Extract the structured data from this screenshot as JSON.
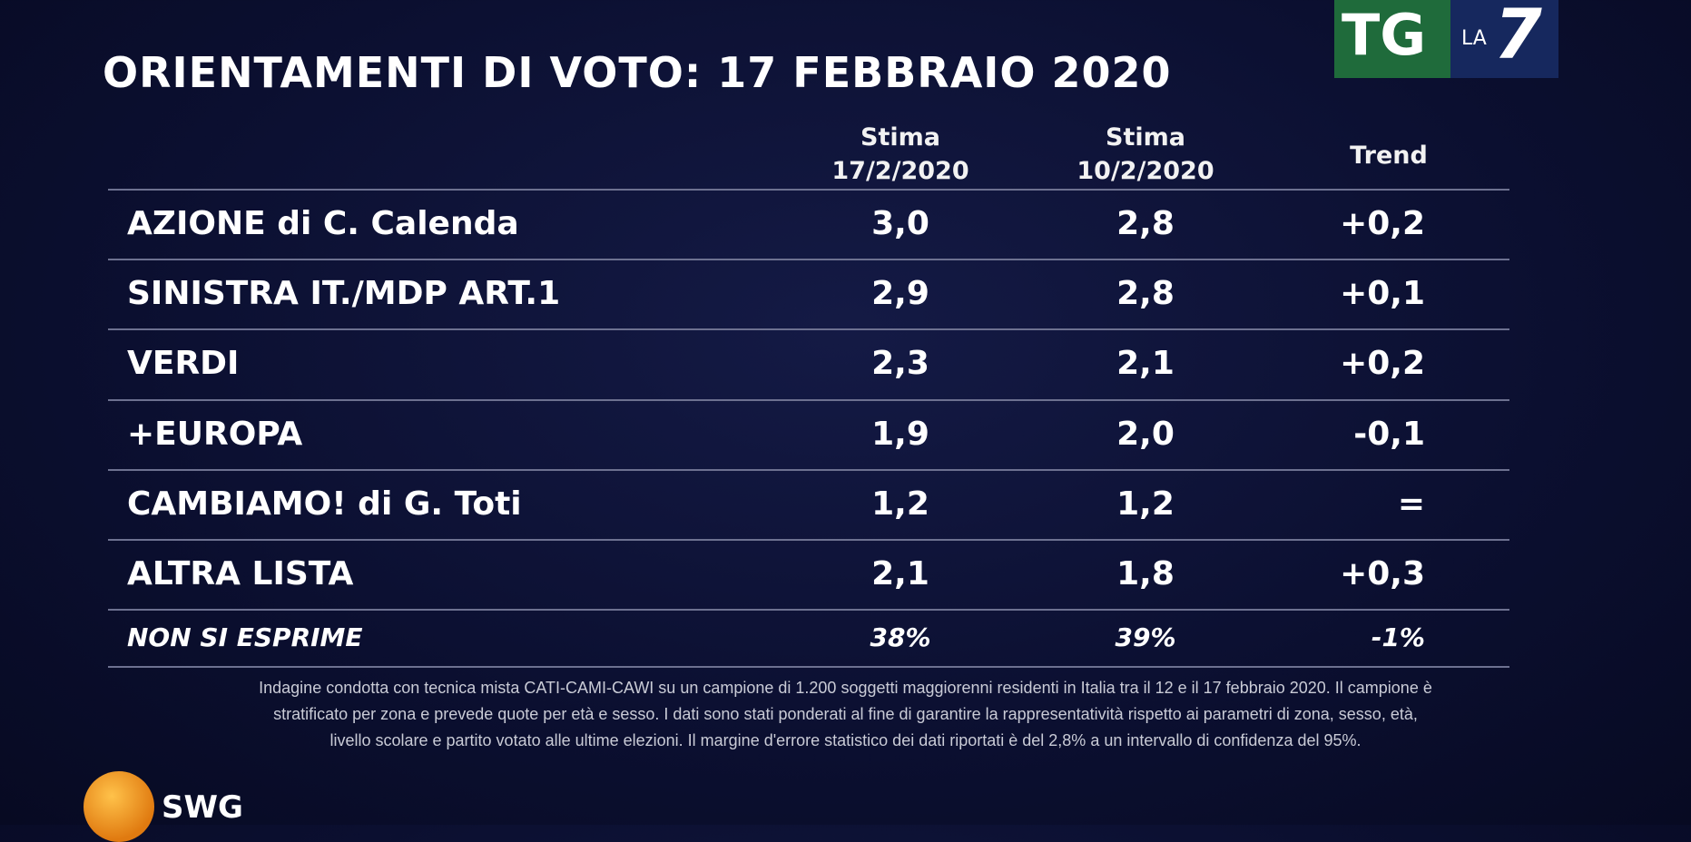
{
  "title": "ORIENTAMENTI DI VOTO: 17 FEBBRAIO 2020",
  "logo": {
    "tg": "TG",
    "la": "LA",
    "seven": "7"
  },
  "table": {
    "columns": [
      {
        "line1": "Stima",
        "line2": "17/2/2020"
      },
      {
        "line1": "Stima",
        "line2": "10/2/2020"
      },
      {
        "line1": "Trend"
      }
    ],
    "rows": [
      [
        "AZIONE di C. Calenda",
        "3,0",
        "2,8",
        "+0,2"
      ],
      [
        "SINISTRA IT./MDP ART.1",
        "2,9",
        "2,8",
        "+0,1"
      ],
      [
        "VERDI",
        "2,3",
        "2,1",
        "+0,2"
      ],
      [
        "+EUROPA",
        "1,9",
        "2,0",
        "-0,1"
      ],
      [
        "CAMBIAMO! di G. Toti",
        "1,2",
        "1,2",
        "="
      ],
      [
        "ALTRA LISTA",
        "2,1",
        "1,8",
        "+0,3"
      ],
      [
        "NON SI ESPRIME",
        "38%",
        "39%",
        "-1%"
      ]
    ]
  },
  "footnote": [
    "Indagine condotta con tecnica mista CATI-CAMI-CAWI su un campione di 1.200 soggetti maggiorenni residenti in Italia tra il 12 e il 17 febbraio 2020. Il campione è",
    "stratificato per zona e prevede quote per età e sesso. I dati sono stati ponderati al fine di garantire la rappresentatività rispetto ai parametri di zona, sesso, età,",
    "livello scolare e partito votato alle ultime elezioni. Il margine d'errore statistico dei dati riportati è del 2,8% a un intervallo di confidenza del 95%."
  ],
  "brand": "SWG"
}
